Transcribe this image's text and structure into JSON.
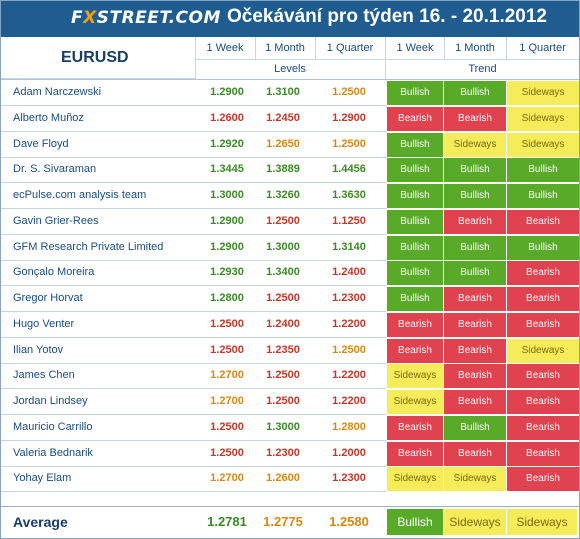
{
  "header": {
    "logo": {
      "pre": "F",
      "x": "X",
      "post": "STREET.COM"
    },
    "title": "Očekávání pro týden 16. - 20.1.2012",
    "pair": "EURUSD",
    "columns": [
      "1 Week",
      "1 Month",
      "1 Quarter",
      "1 Week",
      "1 Month",
      "1 Quarter"
    ],
    "group_levels": "Levels",
    "group_trend": "Trend"
  },
  "colors": {
    "bullish": "#5aaa2a",
    "bearish": "#e0424f",
    "sideways": "#f5ec5a",
    "header": "#1f5c8f"
  },
  "rows": [
    {
      "name": "Adam Narczewski",
      "levels": [
        "1.2900",
        "1.3100",
        "1.2500"
      ],
      "level_tone": [
        "green",
        "green",
        "amber"
      ],
      "trend": [
        "Bullish",
        "Bullish",
        "Sideways"
      ]
    },
    {
      "name": "Alberto Muñoz",
      "levels": [
        "1.2600",
        "1.2450",
        "1.2900"
      ],
      "level_tone": [
        "red",
        "red",
        "red"
      ],
      "trend": [
        "Bearish",
        "Bearish",
        "Sideways"
      ]
    },
    {
      "name": "Dave Floyd",
      "levels": [
        "1.2920",
        "1.2650",
        "1.2500"
      ],
      "level_tone": [
        "green",
        "amber",
        "amber"
      ],
      "trend": [
        "Bullish",
        "Sideways",
        "Sideways"
      ]
    },
    {
      "name": "Dr. S. Sivaraman",
      "levels": [
        "1.3445",
        "1.3889",
        "1.4456"
      ],
      "level_tone": [
        "green",
        "green",
        "green"
      ],
      "trend": [
        "Bullish",
        "Bullish",
        "Bullish"
      ]
    },
    {
      "name": "ecPulse.com analysis team",
      "levels": [
        "1.3000",
        "1.3260",
        "1.3630"
      ],
      "level_tone": [
        "green",
        "green",
        "green"
      ],
      "trend": [
        "Bullish",
        "Bullish",
        "Bullish"
      ]
    },
    {
      "name": "Gavin Grier-Rees",
      "levels": [
        "1.2900",
        "1.2500",
        "1.1250"
      ],
      "level_tone": [
        "green",
        "red",
        "red"
      ],
      "trend": [
        "Bullish",
        "Bearish",
        "Bearish"
      ]
    },
    {
      "name": "GFM Research Private Limited",
      "levels": [
        "1.2900",
        "1.3000",
        "1.3140"
      ],
      "level_tone": [
        "green",
        "green",
        "green"
      ],
      "trend": [
        "Bullish",
        "Bullish",
        "Bullish"
      ]
    },
    {
      "name": "Gonçalo Moreira",
      "levels": [
        "1.2930",
        "1.3400",
        "1.2400"
      ],
      "level_tone": [
        "green",
        "green",
        "red"
      ],
      "trend": [
        "Bullish",
        "Bullish",
        "Bearish"
      ]
    },
    {
      "name": "Gregor Horvat",
      "levels": [
        "1.2800",
        "1.2500",
        "1.2300"
      ],
      "level_tone": [
        "green",
        "red",
        "red"
      ],
      "trend": [
        "Bullish",
        "Bearish",
        "Bearish"
      ]
    },
    {
      "name": "Hugo Venter",
      "levels": [
        "1.2500",
        "1.2400",
        "1.2200"
      ],
      "level_tone": [
        "red",
        "red",
        "red"
      ],
      "trend": [
        "Bearish",
        "Bearish",
        "Bearish"
      ]
    },
    {
      "name": "Ilian Yotov",
      "levels": [
        "1.2500",
        "1.2350",
        "1.2500"
      ],
      "level_tone": [
        "red",
        "red",
        "amber"
      ],
      "trend": [
        "Bearish",
        "Bearish",
        "Sideways"
      ]
    },
    {
      "name": "James Chen",
      "levels": [
        "1.2700",
        "1.2500",
        "1.2200"
      ],
      "level_tone": [
        "amber",
        "red",
        "red"
      ],
      "trend": [
        "Sideways",
        "Bearish",
        "Bearish"
      ]
    },
    {
      "name": "Jordan Lindsey",
      "levels": [
        "1.2700",
        "1.2500",
        "1.2200"
      ],
      "level_tone": [
        "amber",
        "red",
        "red"
      ],
      "trend": [
        "Sideways",
        "Bearish",
        "Bearish"
      ]
    },
    {
      "name": "Mauricio Carrillo",
      "levels": [
        "1.2500",
        "1.3000",
        "1.2800"
      ],
      "level_tone": [
        "red",
        "green",
        "amber"
      ],
      "trend": [
        "Bearish",
        "Bullish",
        "Bearish"
      ]
    },
    {
      "name": "Valeria Bednarik",
      "levels": [
        "1.2500",
        "1.2300",
        "1.2000"
      ],
      "level_tone": [
        "red",
        "red",
        "red"
      ],
      "trend": [
        "Bearish",
        "Bearish",
        "Bearish"
      ]
    },
    {
      "name": "Yohay Elam",
      "levels": [
        "1.2700",
        "1.2600",
        "1.2300"
      ],
      "level_tone": [
        "amber",
        "amber",
        "red"
      ],
      "trend": [
        "Sideways",
        "Sideways",
        "Bearish"
      ]
    }
  ],
  "average": {
    "label": "Average",
    "levels": [
      "1.2781",
      "1.2775",
      "1.2580"
    ],
    "level_tone": [
      "green",
      "amber",
      "amber"
    ],
    "trend": [
      "Bullish",
      "Sideways",
      "Sideways"
    ]
  }
}
